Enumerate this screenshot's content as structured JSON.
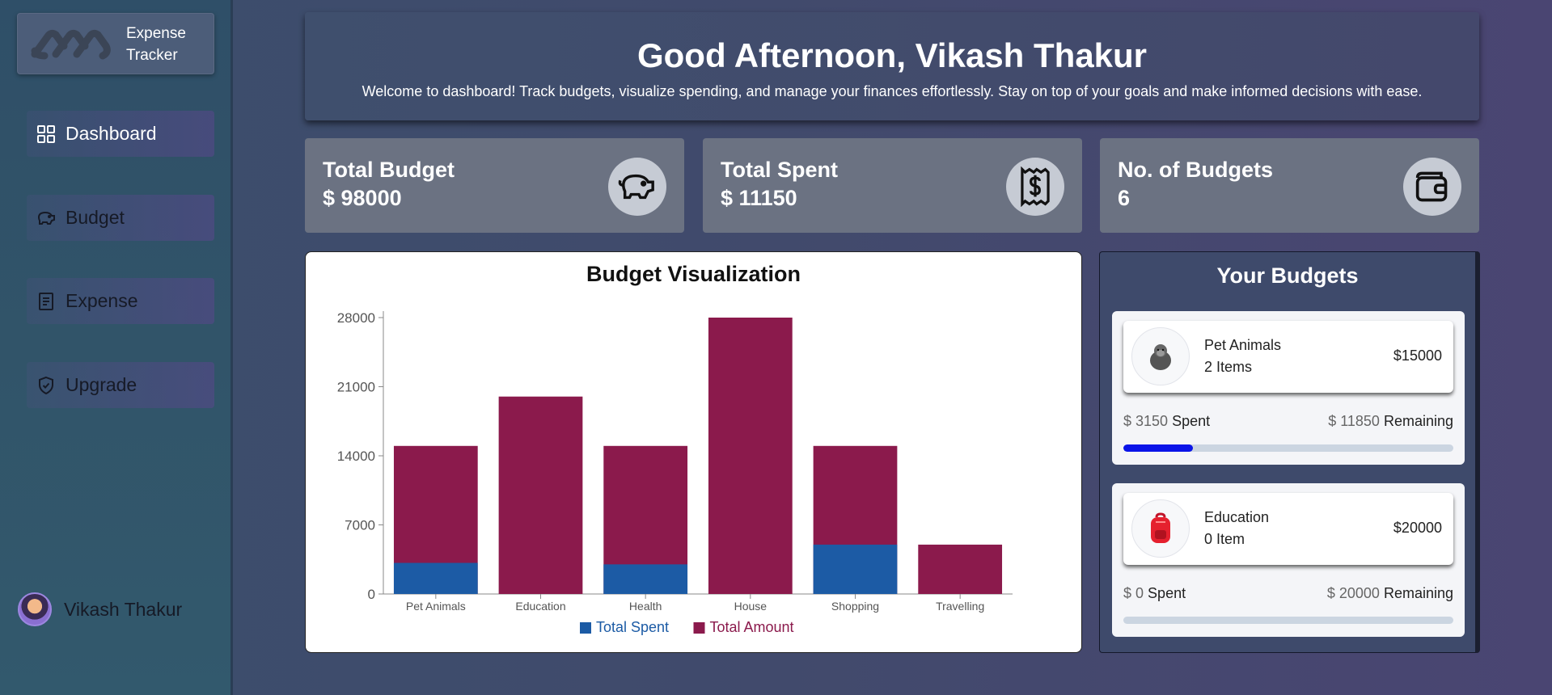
{
  "app": {
    "logo_line1": "Expense",
    "logo_line2": "Tracker"
  },
  "sidebar": {
    "items": [
      {
        "label": "Dashboard",
        "icon": "grid-icon",
        "active": true
      },
      {
        "label": "Budget",
        "icon": "piggy-bank-icon",
        "active": false
      },
      {
        "label": "Expense",
        "icon": "receipt-icon",
        "active": false
      },
      {
        "label": "Upgrade",
        "icon": "shield-check-icon",
        "active": false
      }
    ],
    "user_name": "Vikash Thakur"
  },
  "header": {
    "greeting": "Good Afternoon, Vikash Thakur",
    "subtitle": "Welcome to dashboard! Track budgets, visualize spending, and manage your finances effortlessly. Stay on top of your goals and make informed decisions with ease."
  },
  "stats": [
    {
      "label": "Total Budget",
      "value": "$ 98000",
      "icon": "piggy-bank-icon"
    },
    {
      "label": "Total Spent",
      "value": "$ 11150",
      "icon": "receipt-dollar-icon"
    },
    {
      "label": "No. of Budgets",
      "value": "6",
      "icon": "wallet-icon"
    }
  ],
  "chart_data": {
    "type": "bar",
    "title": "Budget Visualization",
    "stacked": true,
    "categories": [
      "Pet Animals",
      "Education",
      "Health",
      "House",
      "Shopping",
      "Travelling"
    ],
    "series": [
      {
        "name": "Total Spent",
        "values": [
          3150,
          0,
          3000,
          0,
          5000,
          0
        ],
        "color": "#1c5ba5"
      },
      {
        "name": "Total Amount",
        "values": [
          15000,
          20000,
          15000,
          28000,
          15000,
          5000
        ],
        "color": "#8b1a4c"
      }
    ],
    "yticks": [
      0,
      7000,
      14000,
      21000,
      28000
    ],
    "ylim": [
      0,
      28000
    ],
    "legend_position": "bottom"
  },
  "budgets": {
    "title": "Your Budgets",
    "cards": [
      {
        "name": "Pet Animals",
        "items": "2 Items",
        "amount": "$15000",
        "spent_value": "$ 3150",
        "spent_label": "Spent",
        "remaining_value": "$ 11850",
        "remaining_label": "Remaining",
        "progress": 0.21,
        "icon": "gorilla-icon"
      },
      {
        "name": "Education",
        "items": "0 Item",
        "amount": "$20000",
        "spent_value": "$ 0",
        "spent_label": "Spent",
        "remaining_value": "$ 20000",
        "remaining_label": "Remaining",
        "progress": 0,
        "icon": "backpack-icon"
      }
    ]
  }
}
